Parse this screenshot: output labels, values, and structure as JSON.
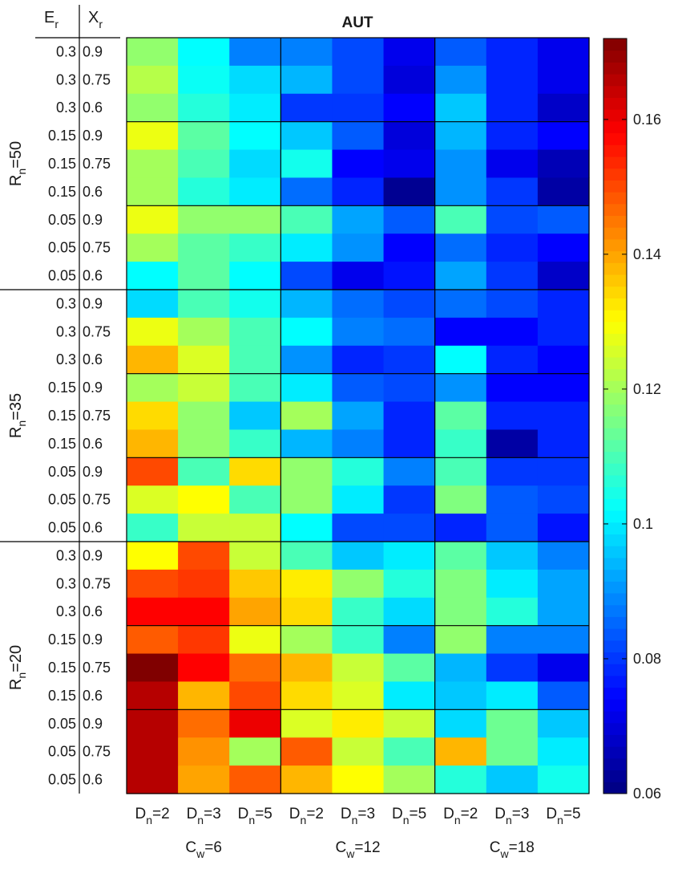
{
  "chart_data": {
    "type": "heatmap",
    "title": "AUT",
    "colormap": "jet",
    "clim": [
      0.06,
      0.172
    ],
    "colorbar_ticks": [
      "0.06",
      "0.08",
      "0.1",
      "0.12",
      "0.14",
      "0.16"
    ],
    "header": {
      "er": "E",
      "er_sub": "r",
      "xr": "X",
      "xr_sub": "r"
    },
    "rn_groups": [
      {
        "label": "R",
        "sub": "n",
        "value": "=50"
      },
      {
        "label": "R",
        "sub": "n",
        "value": "=35"
      },
      {
        "label": "R",
        "sub": "n",
        "value": "=20"
      }
    ],
    "row_labels": [
      [
        "0.3",
        "0.9"
      ],
      [
        "0.3",
        "0.75"
      ],
      [
        "0.3",
        "0.6"
      ],
      [
        "0.15",
        "0.9"
      ],
      [
        "0.15",
        "0.75"
      ],
      [
        "0.15",
        "0.6"
      ],
      [
        "0.05",
        "0.9"
      ],
      [
        "0.05",
        "0.75"
      ],
      [
        "0.05",
        "0.6"
      ],
      [
        "0.3",
        "0.9"
      ],
      [
        "0.3",
        "0.75"
      ],
      [
        "0.3",
        "0.6"
      ],
      [
        "0.15",
        "0.9"
      ],
      [
        "0.15",
        "0.75"
      ],
      [
        "0.15",
        "0.6"
      ],
      [
        "0.05",
        "0.9"
      ],
      [
        "0.05",
        "0.75"
      ],
      [
        "0.05",
        "0.6"
      ],
      [
        "0.3",
        "0.9"
      ],
      [
        "0.3",
        "0.75"
      ],
      [
        "0.3",
        "0.6"
      ],
      [
        "0.15",
        "0.9"
      ],
      [
        "0.15",
        "0.75"
      ],
      [
        "0.15",
        "0.6"
      ],
      [
        "0.05",
        "0.9"
      ],
      [
        "0.05",
        "0.75"
      ],
      [
        "0.05",
        "0.6"
      ]
    ],
    "col_labels": [
      {
        "main": "D",
        "sub": "n",
        "val": "=2"
      },
      {
        "main": "D",
        "sub": "n",
        "val": "=3"
      },
      {
        "main": "D",
        "sub": "n",
        "val": "=5"
      },
      {
        "main": "D",
        "sub": "n",
        "val": "=2"
      },
      {
        "main": "D",
        "sub": "n",
        "val": "=3"
      },
      {
        "main": "D",
        "sub": "n",
        "val": "=5"
      },
      {
        "main": "D",
        "sub": "n",
        "val": "=2"
      },
      {
        "main": "D",
        "sub": "n",
        "val": "=3"
      },
      {
        "main": "D",
        "sub": "n",
        "val": "=5"
      }
    ],
    "cw_groups": [
      {
        "main": "C",
        "sub": "w",
        "val": "=6"
      },
      {
        "main": "C",
        "sub": "w",
        "val": "=12"
      },
      {
        "main": "C",
        "sub": "w",
        "val": "=18"
      }
    ],
    "values": [
      [
        0.118,
        0.102,
        0.088,
        0.088,
        0.082,
        0.072,
        0.084,
        0.078,
        0.072
      ],
      [
        0.122,
        0.103,
        0.098,
        0.094,
        0.082,
        0.07,
        0.09,
        0.078,
        0.072
      ],
      [
        0.118,
        0.106,
        0.1,
        0.08,
        0.08,
        0.074,
        0.096,
        0.078,
        0.068
      ],
      [
        0.128,
        0.112,
        0.102,
        0.096,
        0.084,
        0.07,
        0.094,
        0.078,
        0.074
      ],
      [
        0.12,
        0.11,
        0.098,
        0.104,
        0.074,
        0.072,
        0.09,
        0.072,
        0.066
      ],
      [
        0.12,
        0.106,
        0.1,
        0.086,
        0.078,
        0.062,
        0.09,
        0.08,
        0.064
      ],
      [
        0.128,
        0.118,
        0.118,
        0.11,
        0.092,
        0.084,
        0.11,
        0.082,
        0.084
      ],
      [
        0.12,
        0.112,
        0.108,
        0.1,
        0.09,
        0.074,
        0.086,
        0.078,
        0.074
      ],
      [
        0.102,
        0.112,
        0.102,
        0.082,
        0.072,
        0.076,
        0.092,
        0.08,
        0.068
      ],
      [
        0.098,
        0.11,
        0.104,
        0.094,
        0.086,
        0.082,
        0.086,
        0.082,
        0.078
      ],
      [
        0.128,
        0.12,
        0.11,
        0.102,
        0.088,
        0.086,
        0.074,
        0.074,
        0.078
      ],
      [
        0.138,
        0.126,
        0.11,
        0.09,
        0.078,
        0.08,
        0.102,
        0.078,
        0.074
      ],
      [
        0.12,
        0.124,
        0.11,
        0.1,
        0.084,
        0.082,
        0.09,
        0.074,
        0.074
      ],
      [
        0.134,
        0.118,
        0.096,
        0.12,
        0.092,
        0.078,
        0.112,
        0.078,
        0.078
      ],
      [
        0.138,
        0.118,
        0.108,
        0.094,
        0.088,
        0.078,
        0.108,
        0.064,
        0.078
      ],
      [
        0.15,
        0.11,
        0.134,
        0.118,
        0.106,
        0.088,
        0.11,
        0.08,
        0.08
      ],
      [
        0.126,
        0.13,
        0.11,
        0.118,
        0.1,
        0.08,
        0.116,
        0.084,
        0.082
      ],
      [
        0.108,
        0.124,
        0.124,
        0.102,
        0.082,
        0.082,
        0.078,
        0.084,
        0.076
      ],
      [
        0.13,
        0.15,
        0.124,
        0.11,
        0.096,
        0.1,
        0.112,
        0.096,
        0.088
      ],
      [
        0.15,
        0.152,
        0.136,
        0.132,
        0.118,
        0.106,
        0.116,
        0.1,
        0.092
      ],
      [
        0.158,
        0.158,
        0.14,
        0.134,
        0.108,
        0.098,
        0.116,
        0.106,
        0.092
      ],
      [
        0.148,
        0.152,
        0.128,
        0.12,
        0.108,
        0.088,
        0.118,
        0.088,
        0.088
      ],
      [
        0.172,
        0.158,
        0.146,
        0.138,
        0.124,
        0.112,
        0.094,
        0.08,
        0.072
      ],
      [
        0.166,
        0.138,
        0.15,
        0.134,
        0.126,
        0.1,
        0.096,
        0.1,
        0.084
      ],
      [
        0.166,
        0.146,
        0.16,
        0.126,
        0.132,
        0.124,
        0.098,
        0.114,
        0.096
      ],
      [
        0.166,
        0.142,
        0.12,
        0.148,
        0.124,
        0.11,
        0.138,
        0.114,
        0.1
      ],
      [
        0.166,
        0.14,
        0.148,
        0.138,
        0.13,
        0.12,
        0.106,
        0.096,
        0.104
      ]
    ]
  }
}
